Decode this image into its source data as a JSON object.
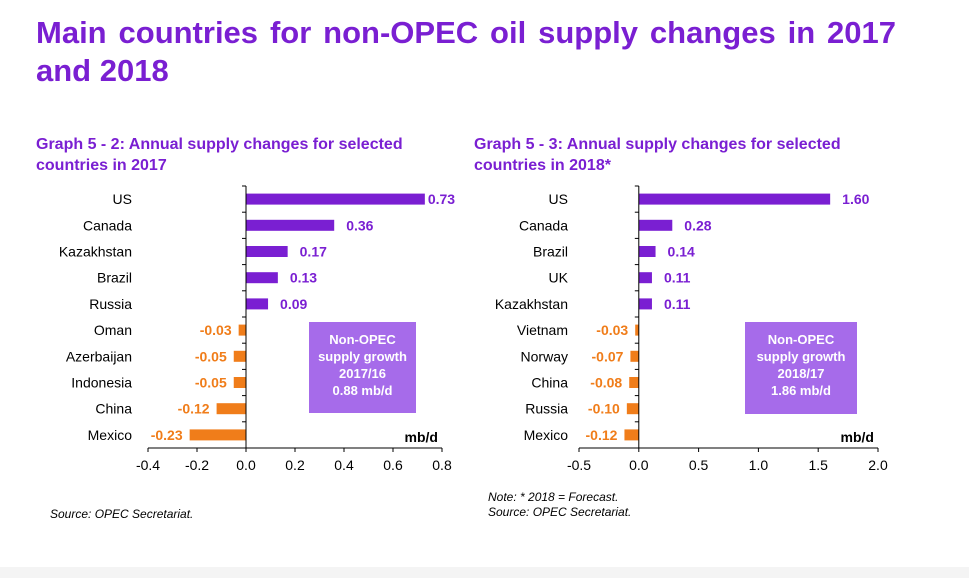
{
  "page": {
    "title": "Main countries for non-OPEC oil supply changes in 2017 and 2018"
  },
  "colors": {
    "positive": "#7a1fd2",
    "negative": "#f07d1a",
    "box": "#a66bea",
    "title": "#7a1fd2"
  },
  "graph1": {
    "title": "Graph 5 - 2: Annual supply changes for selected countries in 2017",
    "source": "Source: OPEC Secretariat."
  },
  "graph2": {
    "title": "Graph 5 - 3: Annual supply changes for selected countries in 2018*",
    "note": "Note: * 2018 = Forecast.",
    "source": "Source: OPEC Secretariat."
  },
  "chart_data": [
    {
      "type": "bar",
      "orientation": "horizontal",
      "title": "Graph 5 - 2: Annual supply changes for selected countries in 2017",
      "categories": [
        "US",
        "Canada",
        "Kazakhstan",
        "Brazil",
        "Russia",
        "Oman",
        "Azerbaijan",
        "Indonesia",
        "China",
        "Mexico"
      ],
      "values": [
        0.73,
        0.36,
        0.17,
        0.13,
        0.09,
        -0.03,
        -0.05,
        -0.05,
        -0.12,
        -0.23
      ],
      "labels": [
        "0.73",
        "0.36",
        "0.17",
        "0.13",
        "0.09",
        "-0.03",
        "-0.05",
        "-0.05",
        "-0.12",
        "-0.23"
      ],
      "xlim": [
        -0.4,
        0.8
      ],
      "xticks": [
        "-0.4",
        "-0.2",
        "0.0",
        "0.2",
        "0.4",
        "0.6",
        "0.8"
      ],
      "xtick_values": [
        -0.4,
        -0.2,
        0.0,
        0.2,
        0.4,
        0.6,
        0.8
      ],
      "unit": "mb/d",
      "annotation": [
        "Non-OPEC",
        "supply growth",
        "2017/16",
        "0.88 mb/d"
      ]
    },
    {
      "type": "bar",
      "orientation": "horizontal",
      "title": "Graph 5 - 3: Annual supply changes for selected countries in 2018*",
      "categories": [
        "US",
        "Canada",
        "Brazil",
        "UK",
        "Kazakhstan",
        "Vietnam",
        "Norway",
        "China",
        "Russia",
        "Mexico"
      ],
      "values": [
        1.6,
        0.28,
        0.14,
        0.11,
        0.11,
        -0.03,
        -0.07,
        -0.08,
        -0.1,
        -0.12
      ],
      "labels": [
        "1.60",
        "0.28",
        "0.14",
        "0.11",
        "0.11",
        "-0.03",
        "-0.07",
        "-0.08",
        "-0.10",
        "-0.12"
      ],
      "xlim": [
        -0.5,
        2.0
      ],
      "xticks": [
        "-0.5",
        "0.0",
        "0.5",
        "1.0",
        "1.5",
        "2.0"
      ],
      "xtick_values": [
        -0.5,
        0.0,
        0.5,
        1.0,
        1.5,
        2.0
      ],
      "unit": "mb/d",
      "annotation": [
        "Non-OPEC",
        "supply growth",
        "2018/17",
        "1.86 mb/d"
      ]
    }
  ]
}
